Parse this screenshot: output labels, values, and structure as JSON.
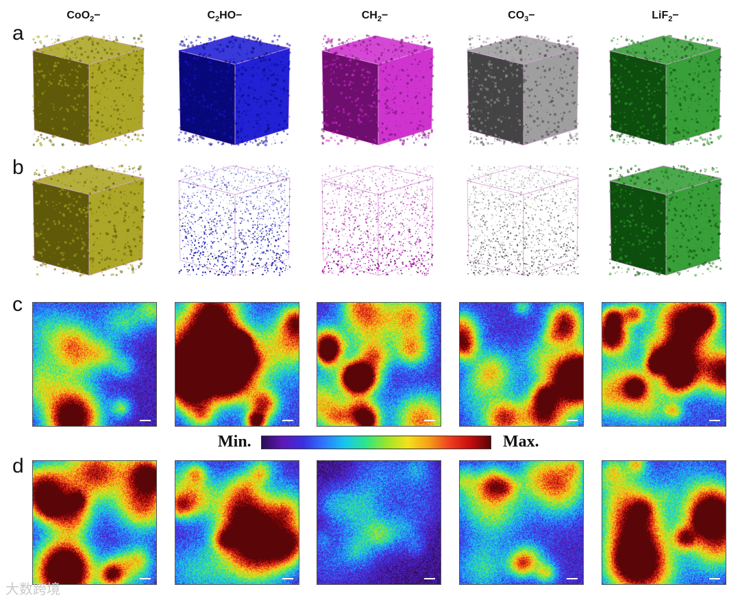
{
  "columns": [
    {
      "base": "CoO",
      "sub": "2",
      "tail": "−",
      "color": "#a8a21c",
      "dark": "#5f5a0a"
    },
    {
      "base": "C",
      "sub": "2",
      "tail": "HO−",
      "color": "#1616d2",
      "dark": "#08087a"
    },
    {
      "base": "CH",
      "sub": "2",
      "tail": "−",
      "color": "#cc29cc",
      "dark": "#6e0e6e"
    },
    {
      "base": "CO",
      "sub": "3",
      "tail": "−",
      "color": "#9a9a9a",
      "dark": "#444444"
    },
    {
      "base": "LiF",
      "sub": "2",
      "tail": "−",
      "color": "#2e9a2e",
      "dark": "#0d4d0d"
    }
  ],
  "row_labels": {
    "a": "a",
    "b": "b",
    "c": "c",
    "d": "d"
  },
  "colorbar": {
    "min_label": "Min.",
    "max_label": "Max."
  },
  "watermark": "大数跨境"
}
